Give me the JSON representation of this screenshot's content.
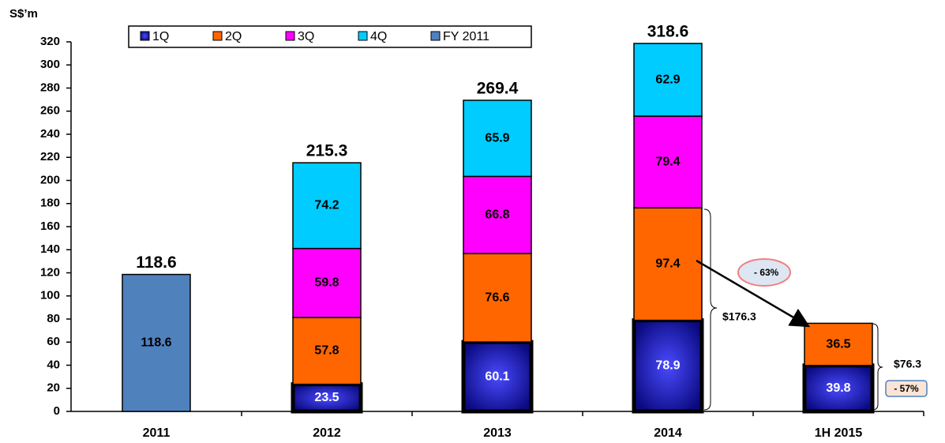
{
  "chart_data": {
    "type": "bar",
    "stacked": true,
    "y_label": "S$’m",
    "categories": [
      "2011",
      "2012",
      "2013",
      "2014",
      "1H 2015"
    ],
    "series": [
      {
        "name": "1Q",
        "color": "#1c1cb0",
        "values": [
          null,
          23.5,
          60.1,
          78.9,
          39.8
        ]
      },
      {
        "name": "2Q",
        "color": "#ff6600",
        "values": [
          null,
          57.8,
          76.6,
          97.4,
          36.5
        ]
      },
      {
        "name": "3Q",
        "color": "#ff00ff",
        "values": [
          null,
          59.8,
          66.8,
          79.4,
          null
        ]
      },
      {
        "name": "4Q",
        "color": "#00ccff",
        "values": [
          null,
          74.2,
          65.9,
          62.9,
          null
        ]
      },
      {
        "name": "FY 2011",
        "color": "#4f81bd",
        "values": [
          118.6,
          null,
          null,
          null,
          null
        ]
      }
    ],
    "totals": [
      118.6,
      215.3,
      269.4,
      318.6,
      null
    ],
    "annotations": [
      "$176.3",
      "- 63%",
      "$76.3",
      "- 57%"
    ],
    "ylim": [
      0,
      320
    ],
    "yticks": [
      0,
      20,
      40,
      60,
      80,
      100,
      120,
      140,
      160,
      180,
      200,
      220,
      240,
      260,
      280,
      300,
      320
    ],
    "legend": "top"
  }
}
